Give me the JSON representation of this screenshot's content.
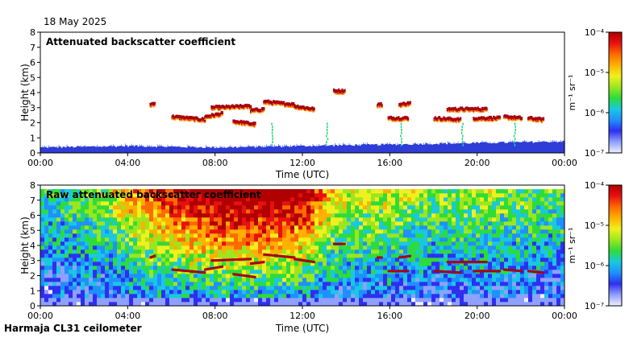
{
  "date": "18 May 2025",
  "footer": "Harmaja CL31 ceilometer",
  "colors": {
    "plot_bg": "#ffffff",
    "colormap": [
      "#eef0ff",
      "#8fa0ff",
      "#2f2ff0",
      "#1e90ff",
      "#19c8e0",
      "#2ddc3a",
      "#9be61e",
      "#f0f01e",
      "#ffb000",
      "#ff6a00",
      "#e81010",
      "#b00000"
    ],
    "aerosol": "#2f3dd6",
    "cloud": "#a80010",
    "cloud_edge": "#ff8a00"
  },
  "chart_data": [
    {
      "type": "heatmap",
      "title": "Attenuated backscatter coefficient",
      "xlabel": "Time (UTC)",
      "ylabel": "Height (km)",
      "xlim": [
        0,
        24
      ],
      "ylim": [
        0,
        8
      ],
      "xticks": [
        "00:00",
        "04:00",
        "08:00",
        "12:00",
        "16:00",
        "20:00",
        "00:00"
      ],
      "xtick_values": [
        0,
        4,
        8,
        12,
        16,
        20,
        24
      ],
      "yticks": [
        0,
        1,
        2,
        3,
        4,
        5,
        6,
        7,
        8
      ],
      "colorbar": {
        "label": "m⁻¹ sr⁻¹",
        "ticks": [
          "10⁻⁴",
          "10⁻⁵",
          "10⁻⁶",
          "10⁻⁷"
        ],
        "range_log10": [
          -7,
          -4
        ]
      },
      "aerosol_layer_top_km": [
        0.3,
        0.35,
        0.4,
        0.35,
        0.3,
        0.35,
        0.4,
        0.45,
        0.5,
        0.55,
        0.6,
        0.65,
        0.7
      ],
      "cloud_layers": [
        {
          "t0": 5.0,
          "t1": 5.2,
          "h0": 3.2,
          "h1": 3.3
        },
        {
          "t0": 6.0,
          "t1": 7.5,
          "h0": 2.4,
          "h1": 2.2
        },
        {
          "t0": 7.5,
          "t1": 8.3,
          "h0": 2.4,
          "h1": 2.6
        },
        {
          "t0": 7.8,
          "t1": 9.6,
          "h0": 3.0,
          "h1": 3.1
        },
        {
          "t0": 8.8,
          "t1": 9.8,
          "h0": 2.1,
          "h1": 1.9
        },
        {
          "t0": 9.6,
          "t1": 10.2,
          "h0": 2.8,
          "h1": 2.9
        },
        {
          "t0": 10.2,
          "t1": 11.6,
          "h0": 3.4,
          "h1": 3.2
        },
        {
          "t0": 11.6,
          "t1": 12.5,
          "h0": 3.1,
          "h1": 2.9
        },
        {
          "t0": 13.4,
          "t1": 13.9,
          "h0": 4.1,
          "h1": 4.1
        },
        {
          "t0": 15.4,
          "t1": 15.6,
          "h0": 3.2,
          "h1": 3.2
        },
        {
          "t0": 16.4,
          "t1": 16.9,
          "h0": 3.2,
          "h1": 3.3
        },
        {
          "t0": 15.9,
          "t1": 16.8,
          "h0": 2.3,
          "h1": 2.3
        },
        {
          "t0": 18.0,
          "t1": 19.2,
          "h0": 2.3,
          "h1": 2.2
        },
        {
          "t0": 18.6,
          "t1": 20.4,
          "h0": 2.9,
          "h1": 2.9
        },
        {
          "t0": 19.8,
          "t1": 21.0,
          "h0": 2.3,
          "h1": 2.3
        },
        {
          "t0": 21.2,
          "t1": 22.0,
          "h0": 2.4,
          "h1": 2.3
        },
        {
          "t0": 22.3,
          "t1": 23.0,
          "h0": 2.3,
          "h1": 2.2
        }
      ]
    },
    {
      "type": "heatmap",
      "title": "Raw attenuated backscatter coefficient",
      "xlabel": "Time (UTC)",
      "ylabel": "Height (km)",
      "xlim": [
        0,
        24
      ],
      "ylim": [
        0,
        8
      ],
      "xticks": [
        "00:00",
        "04:00",
        "08:00",
        "12:00",
        "16:00",
        "20:00",
        "00:00"
      ],
      "xtick_values": [
        0,
        4,
        8,
        12,
        16,
        20,
        24
      ],
      "yticks": [
        0,
        1,
        2,
        3,
        4,
        5,
        6,
        7,
        8
      ],
      "colorbar": {
        "label": "m⁻¹ sr⁻¹",
        "ticks": [
          "10⁻⁴",
          "10⁻⁵",
          "10⁻⁶",
          "10⁻⁷"
        ],
        "range_log10": [
          -7,
          -4
        ]
      },
      "noise_level_by_hour": [
        0.25,
        0.3,
        0.35,
        0.4,
        0.55,
        0.65,
        0.75,
        0.82,
        0.88,
        0.9,
        0.9,
        0.88,
        0.85,
        0.55,
        0.45,
        0.45,
        0.45,
        0.4,
        0.35,
        0.38,
        0.4,
        0.38,
        0.35,
        0.33,
        0.3
      ]
    }
  ]
}
